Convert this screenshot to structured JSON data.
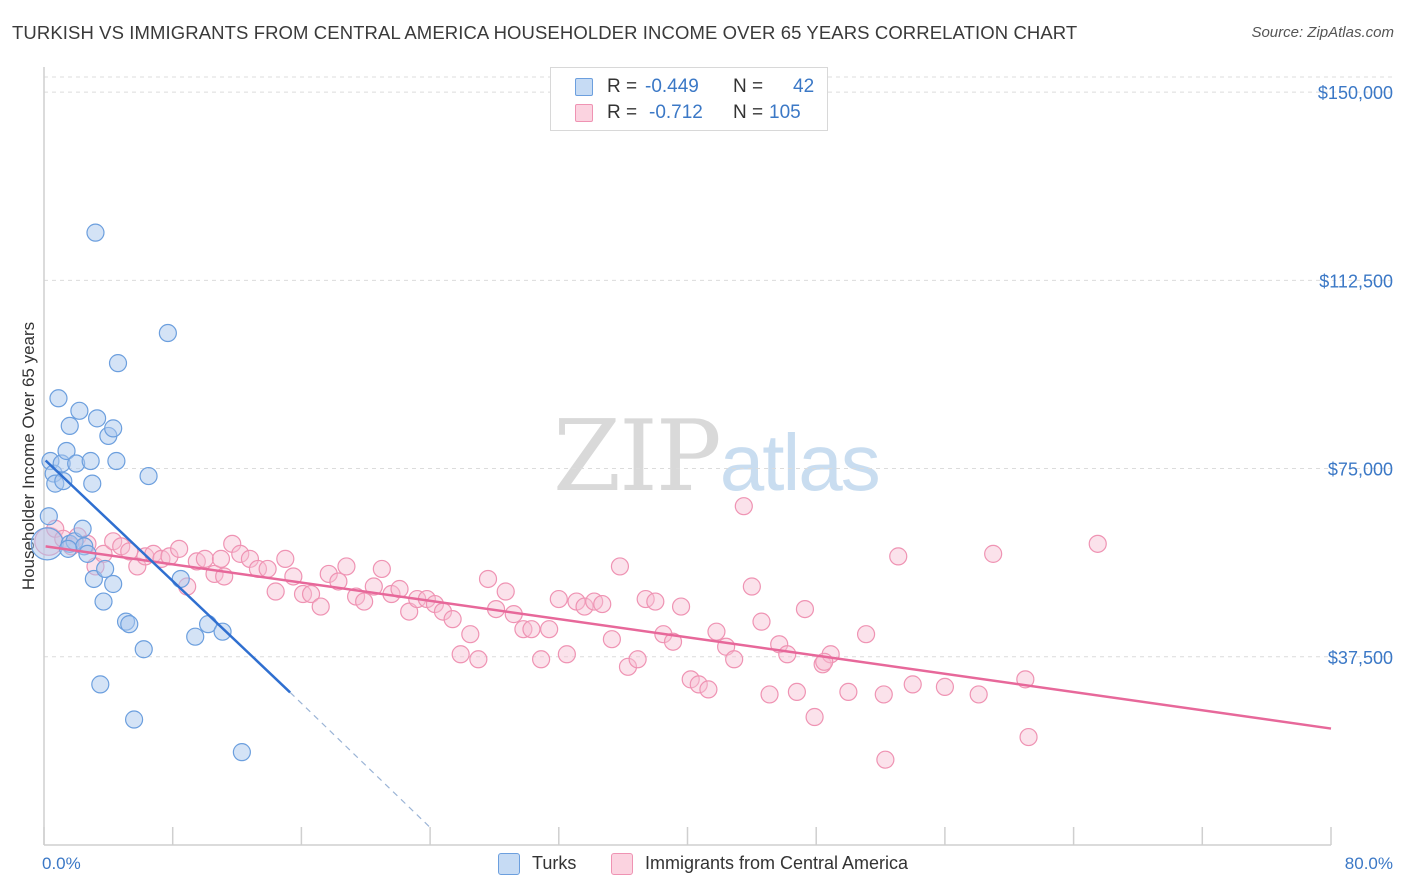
{
  "title": "TURKISH VS IMMIGRANTS FROM CENTRAL AMERICA HOUSEHOLDER INCOME OVER 65 YEARS CORRELATION CHART",
  "source": "Source: ZipAtlas.com",
  "watermark": {
    "zip": "ZIP",
    "atlas": "atlas"
  },
  "legend": {
    "rows": [
      {
        "r_label": "R =",
        "r_value": "-0.449",
        "n_label": "N =",
        "n_value": "42"
      },
      {
        "r_label": "R =",
        "r_value": "-0.712",
        "n_label": "N =",
        "n_value": "105"
      }
    ]
  },
  "bottom_legend": [
    {
      "label": "Turks"
    },
    {
      "label": "Immigrants from Central America"
    }
  ],
  "colors": {
    "turks_fill": "#a9c8ee",
    "turks_stroke": "#6c9fde",
    "turks_line": "#2f6fd0",
    "central_fill": "#f7bfd2",
    "central_stroke": "#ef93b3",
    "central_line": "#e7689a",
    "tick_text": "#3b78c6",
    "grid": "#dcdcdc"
  },
  "chart_data": {
    "type": "scatter",
    "title": "TURKISH VS IMMIGRANTS FROM CENTRAL AMERICA HOUSEHOLDER INCOME OVER 65 YEARS CORRELATION CHART",
    "xlabel": "",
    "ylabel": "Householder Income Over 65 years",
    "xlim": [
      0,
      80
    ],
    "ylim": [
      0,
      155000
    ],
    "x_tick_labels": [
      "0.0%",
      "80.0%"
    ],
    "y_ticks": [
      37500,
      75000,
      112500,
      150000
    ],
    "y_tick_labels": [
      "$37,500",
      "$75,000",
      "$112,500",
      "$150,000"
    ],
    "grid": "horizontal dashed",
    "legend_placement": "top-center",
    "series": [
      {
        "name": "Turks",
        "r": -0.449,
        "n": 42,
        "trend": {
          "x": [
            0.1,
            15.3
          ],
          "y": [
            76600,
            30400
          ]
        },
        "trend_extension": {
          "x": [
            15.3,
            24.0
          ],
          "y": [
            30400,
            3500
          ]
        },
        "points": [
          {
            "x": 0.2,
            "y": 60000,
            "big": true
          },
          {
            "x": 0.3,
            "y": 65500
          },
          {
            "x": 0.4,
            "y": 76500
          },
          {
            "x": 0.6,
            "y": 74000
          },
          {
            "x": 0.7,
            "y": 72000
          },
          {
            "x": 0.9,
            "y": 89000
          },
          {
            "x": 1.1,
            "y": 76000
          },
          {
            "x": 1.2,
            "y": 72500
          },
          {
            "x": 1.4,
            "y": 78500
          },
          {
            "x": 1.6,
            "y": 83500
          },
          {
            "x": 1.6,
            "y": 60000
          },
          {
            "x": 1.9,
            "y": 60500
          },
          {
            "x": 2.0,
            "y": 76000
          },
          {
            "x": 2.2,
            "y": 86500
          },
          {
            "x": 2.4,
            "y": 63000
          },
          {
            "x": 2.5,
            "y": 59500
          },
          {
            "x": 2.7,
            "y": 58000
          },
          {
            "x": 2.9,
            "y": 76500
          },
          {
            "x": 3.0,
            "y": 72000
          },
          {
            "x": 3.1,
            "y": 53000
          },
          {
            "x": 3.2,
            "y": 122000
          },
          {
            "x": 3.3,
            "y": 85000
          },
          {
            "x": 3.5,
            "y": 32000
          },
          {
            "x": 3.7,
            "y": 48500
          },
          {
            "x": 3.8,
            "y": 55000
          },
          {
            "x": 4.0,
            "y": 81500
          },
          {
            "x": 4.3,
            "y": 83000
          },
          {
            "x": 4.3,
            "y": 52000
          },
          {
            "x": 4.5,
            "y": 76500
          },
          {
            "x": 4.6,
            "y": 96000
          },
          {
            "x": 5.1,
            "y": 44500
          },
          {
            "x": 5.3,
            "y": 44000
          },
          {
            "x": 5.6,
            "y": 25000
          },
          {
            "x": 6.2,
            "y": 39000
          },
          {
            "x": 6.5,
            "y": 73500
          },
          {
            "x": 7.7,
            "y": 102000
          },
          {
            "x": 8.5,
            "y": 53000
          },
          {
            "x": 9.4,
            "y": 41500
          },
          {
            "x": 10.2,
            "y": 44000
          },
          {
            "x": 11.1,
            "y": 42500
          },
          {
            "x": 12.3,
            "y": 18500
          },
          {
            "x": 1.5,
            "y": 59000
          }
        ]
      },
      {
        "name": "Immigrants from Central America",
        "r": -0.712,
        "n": 105,
        "trend": {
          "x": [
            0.1,
            80.0
          ],
          "y": [
            59500,
            23200
          ]
        },
        "points": [
          {
            "x": 0.3,
            "y": 60500,
            "big": true
          },
          {
            "x": 0.7,
            "y": 63000
          },
          {
            "x": 1.2,
            "y": 61000
          },
          {
            "x": 1.7,
            "y": 59500
          },
          {
            "x": 2.1,
            "y": 61500
          },
          {
            "x": 2.7,
            "y": 60000
          },
          {
            "x": 3.2,
            "y": 55500
          },
          {
            "x": 3.7,
            "y": 58000
          },
          {
            "x": 4.3,
            "y": 60500
          },
          {
            "x": 4.8,
            "y": 59500
          },
          {
            "x": 5.3,
            "y": 58500
          },
          {
            "x": 5.8,
            "y": 55500
          },
          {
            "x": 6.3,
            "y": 57500
          },
          {
            "x": 6.8,
            "y": 58000
          },
          {
            "x": 7.3,
            "y": 57000
          },
          {
            "x": 7.8,
            "y": 57500
          },
          {
            "x": 8.4,
            "y": 59000
          },
          {
            "x": 8.9,
            "y": 51500
          },
          {
            "x": 9.5,
            "y": 56500
          },
          {
            "x": 10.0,
            "y": 57000
          },
          {
            "x": 10.6,
            "y": 54000
          },
          {
            "x": 11.2,
            "y": 53500
          },
          {
            "x": 11.7,
            "y": 60000
          },
          {
            "x": 12.2,
            "y": 58000
          },
          {
            "x": 12.8,
            "y": 57000
          },
          {
            "x": 13.3,
            "y": 55000
          },
          {
            "x": 13.9,
            "y": 55000
          },
          {
            "x": 14.4,
            "y": 50500
          },
          {
            "x": 15.0,
            "y": 57000
          },
          {
            "x": 15.5,
            "y": 53500
          },
          {
            "x": 16.1,
            "y": 50000
          },
          {
            "x": 16.6,
            "y": 50000
          },
          {
            "x": 17.2,
            "y": 47500
          },
          {
            "x": 17.7,
            "y": 54000
          },
          {
            "x": 18.3,
            "y": 52500
          },
          {
            "x": 18.8,
            "y": 55500
          },
          {
            "x": 19.4,
            "y": 49500
          },
          {
            "x": 19.9,
            "y": 48500
          },
          {
            "x": 20.5,
            "y": 51500
          },
          {
            "x": 21.0,
            "y": 55000
          },
          {
            "x": 21.6,
            "y": 50000
          },
          {
            "x": 22.1,
            "y": 51000
          },
          {
            "x": 22.7,
            "y": 46500
          },
          {
            "x": 23.2,
            "y": 49000
          },
          {
            "x": 23.8,
            "y": 49000
          },
          {
            "x": 24.3,
            "y": 48000
          },
          {
            "x": 24.8,
            "y": 46500
          },
          {
            "x": 25.4,
            "y": 45000
          },
          {
            "x": 25.9,
            "y": 38000
          },
          {
            "x": 26.5,
            "y": 42000
          },
          {
            "x": 27.0,
            "y": 37000
          },
          {
            "x": 27.6,
            "y": 53000
          },
          {
            "x": 28.1,
            "y": 47000
          },
          {
            "x": 28.7,
            "y": 50500
          },
          {
            "x": 29.2,
            "y": 46000
          },
          {
            "x": 29.8,
            "y": 43000
          },
          {
            "x": 30.3,
            "y": 43000
          },
          {
            "x": 30.9,
            "y": 37000
          },
          {
            "x": 31.4,
            "y": 43000
          },
          {
            "x": 32.0,
            "y": 49000
          },
          {
            "x": 32.5,
            "y": 38000
          },
          {
            "x": 33.1,
            "y": 48500
          },
          {
            "x": 33.6,
            "y": 47500
          },
          {
            "x": 34.2,
            "y": 48500
          },
          {
            "x": 34.7,
            "y": 48000
          },
          {
            "x": 35.3,
            "y": 41000
          },
          {
            "x": 35.8,
            "y": 55500
          },
          {
            "x": 36.3,
            "y": 35500
          },
          {
            "x": 36.9,
            "y": 37000
          },
          {
            "x": 37.4,
            "y": 49000
          },
          {
            "x": 38.0,
            "y": 48500
          },
          {
            "x": 38.5,
            "y": 42000
          },
          {
            "x": 39.1,
            "y": 40500
          },
          {
            "x": 39.6,
            "y": 47500
          },
          {
            "x": 40.2,
            "y": 33000
          },
          {
            "x": 40.7,
            "y": 32000
          },
          {
            "x": 41.3,
            "y": 31000
          },
          {
            "x": 41.8,
            "y": 42500
          },
          {
            "x": 42.4,
            "y": 39500
          },
          {
            "x": 42.9,
            "y": 37000
          },
          {
            "x": 43.5,
            "y": 67500
          },
          {
            "x": 44.0,
            "y": 51500
          },
          {
            "x": 44.6,
            "y": 44500
          },
          {
            "x": 45.1,
            "y": 30000
          },
          {
            "x": 45.7,
            "y": 40000
          },
          {
            "x": 46.2,
            "y": 38000
          },
          {
            "x": 46.8,
            "y": 30500
          },
          {
            "x": 47.3,
            "y": 47000
          },
          {
            "x": 47.9,
            "y": 25500
          },
          {
            "x": 48.4,
            "y": 36000
          },
          {
            "x": 48.9,
            "y": 38000
          },
          {
            "x": 48.5,
            "y": 36500
          },
          {
            "x": 50.0,
            "y": 30500
          },
          {
            "x": 51.1,
            "y": 42000
          },
          {
            "x": 52.2,
            "y": 30000
          },
          {
            "x": 53.1,
            "y": 57500
          },
          {
            "x": 54.0,
            "y": 32000
          },
          {
            "x": 56.0,
            "y": 31500
          },
          {
            "x": 52.3,
            "y": 17000
          },
          {
            "x": 58.1,
            "y": 30000
          },
          {
            "x": 59.0,
            "y": 58000
          },
          {
            "x": 61.0,
            "y": 33000
          },
          {
            "x": 61.2,
            "y": 21500
          },
          {
            "x": 65.5,
            "y": 60000
          },
          {
            "x": 11.0,
            "y": 57000
          }
        ]
      }
    ]
  }
}
